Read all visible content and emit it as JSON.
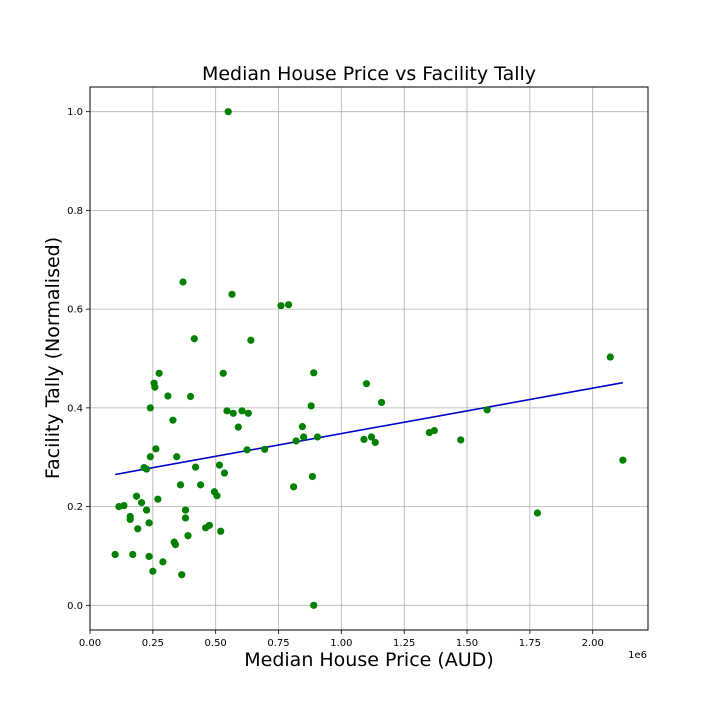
{
  "chart_data": {
    "type": "scatter",
    "title": "Median House Price vs Facility Tally",
    "xlabel": "Median House Price (AUD)",
    "ylabel": "Facility Tally (Normalised)",
    "x_offset_label": "1e6",
    "x_scale_factor": 1000000,
    "xlim": [
      0,
      2220000
    ],
    "ylim": [
      -0.05,
      1.05
    ],
    "grid": true,
    "x_ticks": [
      0,
      250000,
      500000,
      750000,
      1000000,
      1250000,
      1500000,
      1750000,
      2000000
    ],
    "x_tick_labels": [
      "0.00",
      "0.25",
      "0.50",
      "0.75",
      "1.00",
      "1.25",
      "1.50",
      "1.75",
      "2.00"
    ],
    "y_ticks": [
      0.0,
      0.2,
      0.4,
      0.6,
      0.8,
      1.0
    ],
    "y_tick_labels": [
      "0.0",
      "0.2",
      "0.4",
      "0.6",
      "0.8",
      "1.0"
    ],
    "point_color": "#008000",
    "trendline_color": "#0000cc",
    "trendline": {
      "x": [
        100000,
        2120000
      ],
      "y": [
        0.265,
        0.451
      ]
    },
    "points": [
      [
        100000,
        0.103
      ],
      [
        115000,
        0.2
      ],
      [
        135000,
        0.202
      ],
      [
        160000,
        0.18
      ],
      [
        160000,
        0.174
      ],
      [
        170000,
        0.103
      ],
      [
        185000,
        0.221
      ],
      [
        190000,
        0.155
      ],
      [
        205000,
        0.208
      ],
      [
        215000,
        0.279
      ],
      [
        225000,
        0.276
      ],
      [
        225000,
        0.193
      ],
      [
        235000,
        0.167
      ],
      [
        235000,
        0.099
      ],
      [
        240000,
        0.4
      ],
      [
        240000,
        0.301
      ],
      [
        250000,
        0.069
      ],
      [
        255000,
        0.45
      ],
      [
        258000,
        0.442
      ],
      [
        262000,
        0.317
      ],
      [
        270000,
        0.215
      ],
      [
        275000,
        0.47
      ],
      [
        290000,
        0.088
      ],
      [
        310000,
        0.424
      ],
      [
        330000,
        0.375
      ],
      [
        335000,
        0.128
      ],
      [
        340000,
        0.123
      ],
      [
        345000,
        0.301
      ],
      [
        360000,
        0.244
      ],
      [
        365000,
        0.062
      ],
      [
        370000,
        0.655
      ],
      [
        380000,
        0.193
      ],
      [
        380000,
        0.177
      ],
      [
        390000,
        0.141
      ],
      [
        400000,
        0.423
      ],
      [
        415000,
        0.54
      ],
      [
        420000,
        0.28
      ],
      [
        440000,
        0.244
      ],
      [
        460000,
        0.157
      ],
      [
        475000,
        0.162
      ],
      [
        495000,
        0.23
      ],
      [
        505000,
        0.222
      ],
      [
        515000,
        0.284
      ],
      [
        520000,
        0.15
      ],
      [
        530000,
        0.47
      ],
      [
        535000,
        0.268
      ],
      [
        545000,
        0.394
      ],
      [
        550000,
        1.0
      ],
      [
        565000,
        0.63
      ],
      [
        570000,
        0.389
      ],
      [
        590000,
        0.361
      ],
      [
        605000,
        0.394
      ],
      [
        625000,
        0.315
      ],
      [
        630000,
        0.389
      ],
      [
        640000,
        0.537
      ],
      [
        695000,
        0.316
      ],
      [
        760000,
        0.607
      ],
      [
        790000,
        0.609
      ],
      [
        810000,
        0.24
      ],
      [
        820000,
        0.333
      ],
      [
        845000,
        0.362
      ],
      [
        850000,
        0.341
      ],
      [
        880000,
        0.404
      ],
      [
        885000,
        0.261
      ],
      [
        890000,
        0.471
      ],
      [
        890000,
        0.0
      ],
      [
        905000,
        0.341
      ],
      [
        1090000,
        0.336
      ],
      [
        1100000,
        0.449
      ],
      [
        1120000,
        0.341
      ],
      [
        1135000,
        0.33
      ],
      [
        1160000,
        0.411
      ],
      [
        1350000,
        0.35
      ],
      [
        1370000,
        0.354
      ],
      [
        1475000,
        0.335
      ],
      [
        1580000,
        0.396
      ],
      [
        1780000,
        0.187
      ],
      [
        2070000,
        0.503
      ],
      [
        2120000,
        0.294
      ]
    ]
  }
}
